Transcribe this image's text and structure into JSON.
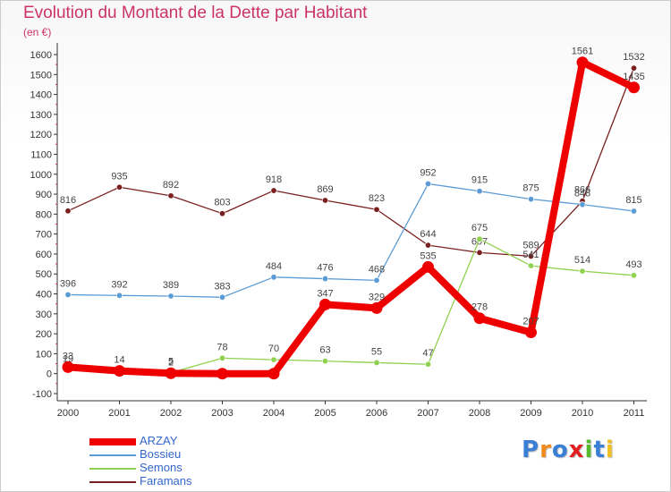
{
  "chart_data": {
    "type": "line",
    "title": "Evolution du Montant de la Dette par Habitant",
    "subtitle": "(en €)",
    "x": [
      "2000",
      "2001",
      "2002",
      "2003",
      "2004",
      "2005",
      "2006",
      "2007",
      "2008",
      "2009",
      "2010",
      "2011"
    ],
    "yticks": [
      "-100",
      "0",
      "100",
      "200",
      "300",
      "400",
      "500",
      "600",
      "700",
      "800",
      "900",
      "1000",
      "1100",
      "1200",
      "1300",
      "1400",
      "1500",
      "1600"
    ],
    "ylim": [
      -100,
      1600
    ],
    "grid": false,
    "legend_position": "bottom-left",
    "series": [
      {
        "name": "Faramans",
        "color": "#7a1f1f",
        "values": [
          816,
          935,
          892,
          803,
          918,
          869,
          823,
          644,
          607,
          589,
          866,
          1532
        ],
        "labels": [
          "816",
          "935",
          "892",
          "803",
          "918",
          "869",
          "823",
          "644",
          "607",
          "589",
          "866",
          "1532"
        ]
      },
      {
        "name": "Bossieu",
        "color": "#5b9bd5",
        "values": [
          396,
          392,
          389,
          383,
          484,
          476,
          468,
          952,
          915,
          875,
          848,
          815
        ],
        "labels": [
          "396",
          "392",
          "389",
          "383",
          "484",
          "476",
          "468",
          "952",
          "915",
          "875",
          "848",
          "815"
        ]
      },
      {
        "name": "Semons",
        "color": "#8fd14f",
        "values": [
          19,
          14,
          5,
          78,
          70,
          63,
          55,
          47,
          675,
          541,
          514,
          493
        ],
        "labels": [
          "19",
          "14",
          "5",
          "78",
          "70",
          "63",
          "55",
          "47",
          "675",
          "541",
          "514",
          "493"
        ]
      },
      {
        "name": "ARZAY",
        "color": "#ee0000",
        "values": [
          33,
          14,
          2,
          0,
          0,
          347,
          329,
          535,
          278,
          207,
          1561,
          1435
        ],
        "labels": [
          "33",
          "",
          "2",
          "",
          "",
          "347",
          "329",
          "535",
          "278",
          "207",
          "1561",
          "1435"
        ]
      }
    ]
  },
  "legend": [
    {
      "label": "ARZAY",
      "color": "#ee0000"
    },
    {
      "label": "Bossieu",
      "color": "#5b9bd5"
    },
    {
      "label": "Semons",
      "color": "#8fd14f"
    },
    {
      "label": "Faramans",
      "color": "#7a1f1f"
    }
  ],
  "logo": {
    "letters": [
      "P",
      "r",
      "o",
      "x",
      "i",
      "t",
      "i"
    ],
    "colors": [
      "#3a7fd5",
      "#f08a1c",
      "#3a7fd5",
      "#e02020",
      "#58b830",
      "#3a7fd5",
      "#f0c020"
    ]
  }
}
